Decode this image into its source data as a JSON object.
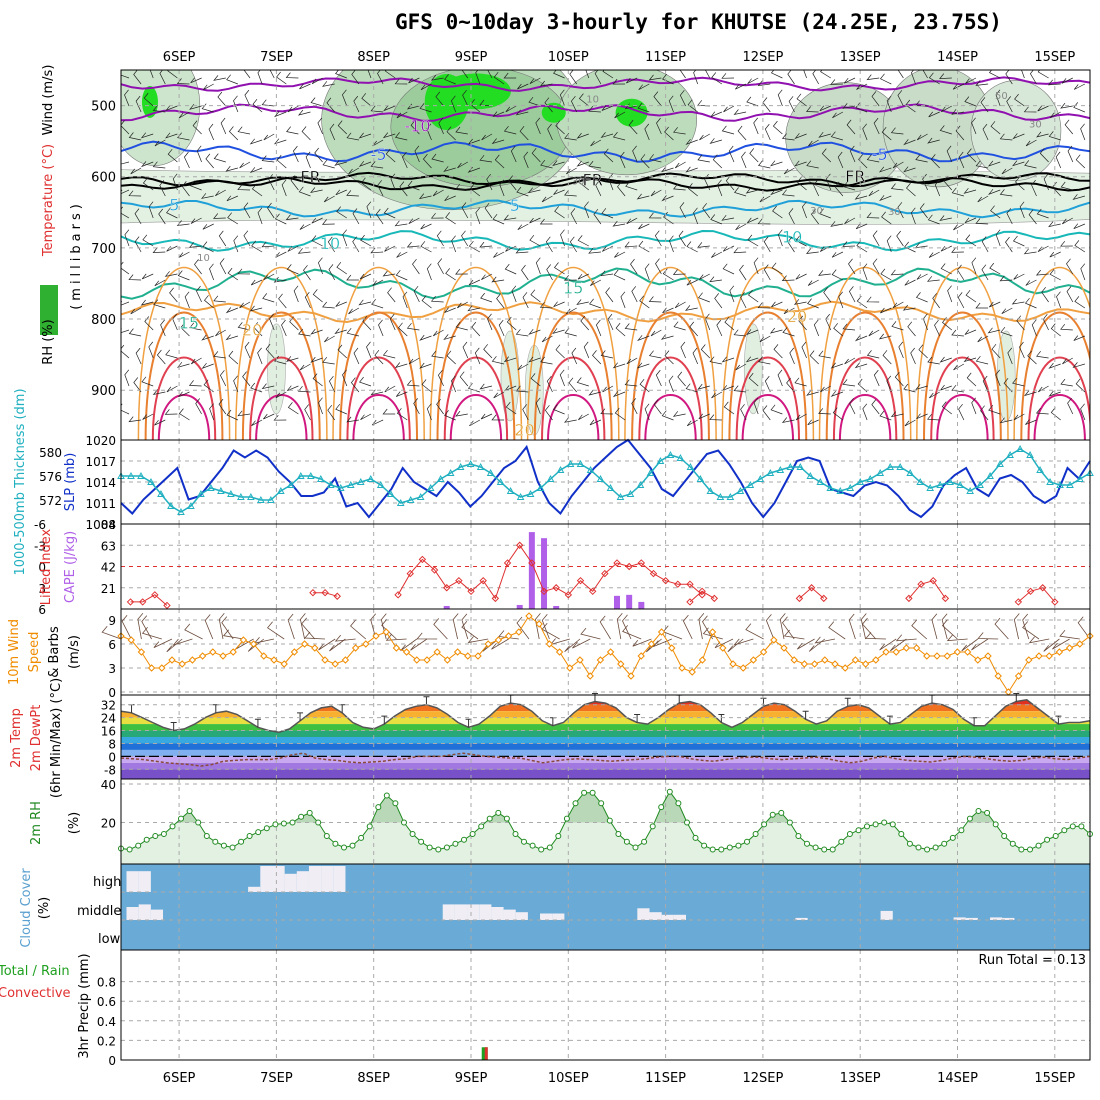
{
  "title": "GFS 0~10day 3-hourly for KHUTSE (24.25E, 23.75S)",
  "colors": {
    "wind_orange": "#f08c00",
    "lifted_red": "#e03030",
    "cape_purple": "#b060e8",
    "slp_blue": "#1030c8",
    "thick_cyan": "#20b0c0",
    "rh_green": "#208a20",
    "cloud_blue": "#6aaad6",
    "rain_green": "#20a020",
    "conv_red": "#e03030"
  },
  "chart_data": [
    {
      "type": "heatmap",
      "panel": "upper-air",
      "ylabel_parts": [
        "RH (%)",
        "Temperature (°C)",
        "Wind (m/s)"
      ],
      "yunit": "(millibars)",
      "yticks": [
        500,
        600,
        700,
        800,
        900
      ],
      "x_ticks": [
        "6SEP",
        "7SEP",
        "8SEP",
        "9SEP",
        "10SEP",
        "11SEP",
        "12SEP",
        "13SEP",
        "14SEP",
        "15SEP"
      ],
      "contour_labels": [
        {
          "text": "-10",
          "day": 2.95,
          "p": 528
        },
        {
          "text": "-5",
          "day": 2.55,
          "p": 568
        },
        {
          "text": "-5",
          "day": 7.7,
          "p": 568
        },
        {
          "text": "FR",
          "day": 1.85,
          "p": 600
        },
        {
          "text": "FR",
          "day": 4.75,
          "p": 604
        },
        {
          "text": "FR",
          "day": 7.45,
          "p": 599
        },
        {
          "text": "5",
          "day": 0.45,
          "p": 639
        },
        {
          "text": "5",
          "day": 3.95,
          "p": 640
        },
        {
          "text": "10",
          "day": 2.05,
          "p": 693
        },
        {
          "text": "10",
          "day": 6.8,
          "p": 684
        },
        {
          "text": "15",
          "day": 0.6,
          "p": 805
        },
        {
          "text": "15",
          "day": 4.55,
          "p": 756
        },
        {
          "text": "20",
          "day": 1.25,
          "p": 815
        },
        {
          "text": "20",
          "day": 6.85,
          "p": 796
        },
        {
          "text": "20",
          "day": 4.05,
          "p": 955
        }
      ],
      "rh_labels": [
        {
          "text": "10",
          "day": 4.75,
          "p": 490
        },
        {
          "text": "30",
          "day": 4.6,
          "p": 605
        },
        {
          "text": "30",
          "day": 7.05,
          "p": 647
        },
        {
          "text": "30",
          "day": 7.85,
          "p": 648
        },
        {
          "text": "10",
          "day": 0.75,
          "p": 713
        },
        {
          "text": "30",
          "day": 9.3,
          "p": 525
        },
        {
          "text": "50",
          "day": 8.95,
          "p": 485
        }
      ]
    },
    {
      "type": "line",
      "panel": "thickness-slp",
      "ylabel_left": "1000-500mb Thickness (dm)",
      "ylabel_right": "SLP (mb)",
      "left_ticks": [
        572,
        576,
        580
      ],
      "right_ticks": [
        1008,
        1011,
        1014,
        1017,
        1020
      ],
      "series": [
        {
          "name": "SLP (mb)",
          "axis": "right",
          "values": [
            1011,
            1009.5,
            1011.5,
            1013,
            1014.5,
            1016,
            1011.5,
            1012,
            1014,
            1016,
            1018.5,
            1017.5,
            1018.5,
            1017.5,
            1015.5,
            1014,
            1012,
            1012,
            1012.5,
            1014.5,
            1010.5,
            1011,
            1009,
            1011,
            1013,
            1016,
            1014,
            1013,
            1012,
            1014,
            1012.5,
            1010.5,
            1012,
            1014,
            1016,
            1017,
            1019,
            1014,
            1011,
            1009.5,
            1012,
            1014,
            1016,
            1017.5,
            1019,
            1020,
            1018,
            1016,
            1013,
            1012,
            1014,
            1016,
            1018,
            1018.5,
            1016.5,
            1014,
            1011,
            1009,
            1011,
            1014,
            1017,
            1017.5,
            1017,
            1013,
            1012.5,
            1012,
            1013.5,
            1014,
            1013.5,
            1012,
            1010,
            1009,
            1010.5,
            1013.5,
            1015,
            1016,
            1013,
            1012,
            1014.5,
            1015,
            1014,
            1012,
            1011,
            1012,
            1016,
            1014.5,
            1017
          ]
        },
        {
          "name": "1000-500mb Thickness (dm)",
          "axis": "left",
          "values": [
            576,
            576,
            576,
            575,
            573,
            571,
            570,
            571,
            573,
            574,
            573.5,
            573,
            572.5,
            572.5,
            572,
            572,
            573.5,
            574.5,
            576,
            576,
            575.5,
            574.5,
            574,
            574.5,
            575,
            575.5,
            574.5,
            573,
            571.5,
            572,
            572.5,
            574,
            575.5,
            576.5,
            577.5,
            578,
            577.5,
            576.5,
            575,
            573.5,
            572.5,
            573,
            574,
            575.5,
            577,
            578,
            578,
            577,
            575.5,
            574,
            572.5,
            573,
            574.5,
            576.5,
            578.5,
            579.5,
            579,
            577.5,
            575.5,
            573.5,
            572.5,
            572.5,
            573.5,
            574.5,
            575.5,
            576.5,
            577,
            577.5,
            577.5,
            576,
            575,
            574,
            573.5,
            574,
            575,
            575.5,
            576.5,
            577.5,
            577.5,
            576.5,
            575,
            574,
            574.5,
            575,
            574.5,
            573.5,
            574.5,
            576,
            578,
            579.5,
            580.5,
            579.5,
            577,
            575,
            574.5,
            574.5,
            575.5,
            576.5
          ]
        }
      ]
    },
    {
      "type": "bar",
      "panel": "instability",
      "ylabel_left": "Lifted Index",
      "ylabel_right": "CAPE (J/kg)",
      "li_ticks": [
        "-6",
        "-3",
        "0",
        "3",
        "6"
      ],
      "cape_ticks": [
        21,
        42,
        63,
        84
      ],
      "series": [
        {
          "name": "Lifted Index",
          "axis": "left",
          "segments": [
            {
              "start_day": 0.0,
              "values": [
                5,
                5,
                4,
                5.5
              ]
            },
            {
              "start_day": 1.875,
              "values": [
                3.7,
                3.7,
                4.2
              ]
            },
            {
              "start_day": 2.75,
              "values": [
                4,
                1,
                -1,
                0.5,
                3,
                2,
                3.5,
                2,
                4.5,
                -0.5,
                -3,
                -0.5,
                3.5,
                3,
                4,
                2,
                3.5,
                1,
                -0.5,
                0,
                -0.5,
                1,
                2,
                2.5,
                2.5,
                4
              ]
            },
            {
              "start_day": 5.75,
              "values": [
                5,
                3.5,
                4.5
              ]
            },
            {
              "start_day": 6.875,
              "values": [
                4.5,
                3,
                4.5
              ]
            },
            {
              "start_day": 8.0,
              "values": [
                4.5,
                2.5,
                2,
                4.5
              ]
            },
            {
              "start_day": 9.125,
              "values": [
                5,
                3.5,
                3,
                5
              ]
            }
          ]
        },
        {
          "name": "CAPE (J/kg)",
          "axis": "right",
          "days": [
            3.25,
            4.0,
            4.125,
            4.25,
            4.375,
            4.5,
            5.0,
            5.125,
            5.25
          ],
          "values": [
            3,
            4,
            76,
            70,
            3,
            0,
            13,
            14,
            7
          ]
        }
      ]
    },
    {
      "type": "line",
      "panel": "wind10m",
      "ylabel_parts": [
        "10m Wind",
        "Speed",
        "& Barbs",
        "(m/s)"
      ],
      "yticks": [
        0,
        3,
        6,
        9
      ],
      "series": [
        {
          "name": "10m Wind Speed",
          "values": [
            7,
            6.5,
            5,
            3,
            3,
            4,
            3.5,
            4,
            4.5,
            5,
            4.5,
            5,
            6.5,
            6,
            4.5,
            4,
            3.5,
            5,
            6,
            5.5,
            4,
            3.5,
            4,
            5.5,
            6,
            7,
            7.5,
            5.5,
            5,
            4,
            4,
            5,
            4,
            5,
            4.5,
            4.5,
            6,
            6.5,
            7,
            7.5,
            9.5,
            8.5,
            6,
            5,
            3,
            4,
            2,
            4,
            5,
            3.5,
            2,
            4.5,
            6,
            7.5,
            5.5,
            3,
            2.5,
            4,
            7.5,
            5.5,
            3.5,
            3,
            4,
            5,
            6.5,
            5.5,
            4,
            3.5,
            3.5,
            4,
            3.5,
            3,
            4,
            3.5,
            4,
            5,
            5,
            5.5,
            5.5,
            4.5,
            4.5,
            4.5,
            5,
            5,
            4,
            4.5,
            2,
            0,
            2,
            4,
            4.5,
            4.5,
            5,
            5.5,
            6,
            7
          ]
        }
      ]
    },
    {
      "type": "area",
      "panel": "temperature",
      "ylabel_parts": [
        "2m Temp",
        "2m DewPt",
        "(6hr Min/Max) (°C)"
      ],
      "yticks": [
        "-8",
        "0",
        "8",
        "16",
        "24",
        "32"
      ],
      "series": [
        {
          "name": "2m Temp",
          "values": [
            28,
            27,
            24,
            21,
            18,
            16,
            17,
            20,
            24,
            27,
            28,
            26,
            22,
            18,
            16,
            15,
            17,
            22,
            27,
            30,
            31,
            27,
            21,
            18,
            17,
            20,
            25,
            29,
            31,
            32,
            30,
            26,
            21,
            18,
            20,
            25,
            31,
            33,
            32,
            28,
            22,
            19,
            21,
            27,
            32,
            34,
            33,
            30,
            24,
            21,
            20,
            24,
            29,
            33,
            34,
            32,
            27,
            21,
            18,
            21,
            26,
            31,
            33,
            32,
            28,
            23,
            20,
            22,
            28,
            31,
            32,
            30,
            25,
            20,
            21,
            26,
            31,
            33,
            32,
            29,
            23,
            19,
            19,
            25,
            31,
            34,
            35,
            30,
            25,
            20,
            21,
            21,
            22
          ]
        },
        {
          "name": "2m DewPt",
          "values": [
            -1,
            -1.5,
            -2,
            -3,
            -4,
            -4.5,
            -5,
            -6,
            -5,
            -3,
            -2.5,
            -2,
            -2,
            -2,
            -1,
            1,
            2,
            -1,
            -2,
            -2.5,
            -3.5,
            -4,
            -3.5,
            -3,
            -2,
            -1.5,
            0,
            0,
            0,
            1,
            2,
            1,
            0,
            -0.5,
            -1,
            -1,
            -2.5,
            -4,
            -3,
            -2,
            -1.5,
            -2,
            -2.5,
            -3,
            -2.5,
            -2,
            -1.5,
            -0.5,
            0,
            0,
            -1.5,
            -2.5,
            -3,
            -2,
            -1,
            -0.5,
            -0.5,
            -1.5,
            -2,
            -1.5,
            -1,
            -0.5,
            -1.5,
            -3,
            -4,
            -3,
            -1,
            0,
            -1.5,
            -2.5,
            -3,
            -3.5,
            -2.5,
            -1,
            0,
            -0.5,
            -1.5,
            -2.5,
            -3,
            -2.5,
            -1,
            -0.5,
            -1.5,
            -2,
            -1,
            0
          ]
        }
      ]
    },
    {
      "type": "area",
      "panel": "rh2m",
      "ylabel_parts": [
        "2m RH",
        "(%)"
      ],
      "yticks": [
        20,
        40
      ],
      "series": [
        {
          "name": "2m RH",
          "values": [
            6.5,
            6,
            8,
            11,
            13,
            14,
            18,
            22,
            26,
            20,
            13,
            10,
            8,
            7,
            10,
            13,
            15,
            17,
            19,
            19.5,
            20,
            23,
            25,
            20,
            13,
            9,
            7,
            8,
            12,
            18,
            28,
            34,
            30,
            20,
            14,
            10,
            7,
            6,
            7,
            9,
            11,
            14,
            18,
            22,
            25,
            22,
            14,
            10,
            8,
            6,
            7,
            13,
            22,
            30,
            35.5,
            35.5,
            30,
            21,
            14,
            10,
            7,
            10,
            18,
            28,
            36,
            30,
            20,
            12,
            8,
            6,
            6,
            7,
            8,
            10,
            14,
            19,
            24,
            25,
            20,
            13,
            9,
            7,
            6,
            6,
            10,
            14,
            16,
            18,
            19,
            20,
            19,
            14,
            9,
            7,
            6,
            7,
            9,
            12,
            16,
            22,
            26,
            25,
            19,
            13,
            9,
            6,
            6,
            8,
            11,
            13,
            16,
            18,
            18,
            14
          ]
        }
      ]
    },
    {
      "type": "bar",
      "panel": "cloud-cover",
      "ylabel_parts": [
        "Cloud Cover",
        "(%)"
      ],
      "level_labels": [
        "high",
        "middle",
        "low"
      ],
      "series": [
        {
          "name": "high",
          "days": [
            0.0,
            0.125,
            1.25,
            1.375,
            1.5,
            1.625,
            1.75,
            1.875,
            2.0,
            2.125
          ],
          "values": [
            80,
            80,
            20,
            100,
            100,
            70,
            80,
            100,
            100,
            100
          ]
        },
        {
          "name": "middle",
          "days": [
            0.0,
            0.125,
            0.25,
            3.25,
            3.375,
            3.5,
            3.625,
            3.75,
            3.875,
            4.0,
            4.25,
            4.375,
            5.25,
            5.375,
            5.5,
            5.625,
            6.875,
            7.75,
            8.5,
            8.625,
            8.875,
            9.0
          ],
          "values": [
            50,
            60,
            40,
            60,
            60,
            60,
            60,
            50,
            40,
            30,
            25,
            25,
            45,
            30,
            20,
            20,
            8,
            35,
            10,
            8,
            10,
            8
          ]
        },
        {
          "name": "low",
          "days": [],
          "values": []
        }
      ]
    },
    {
      "type": "bar",
      "panel": "precipitation",
      "ylabel_parts": [
        "Total / Rain",
        "Convective",
        "3hr Precip (mm)"
      ],
      "yticks": [
        "0",
        "0.2",
        "0.4",
        "0.6",
        "0.8"
      ],
      "run_total": "Run Total = 0.13",
      "series": [
        {
          "name": "Total / Rain",
          "days": [
            3.25
          ],
          "values": [
            0.13
          ]
        },
        {
          "name": "Convective",
          "days": [
            3.25
          ],
          "values": [
            0.13
          ]
        }
      ]
    }
  ]
}
